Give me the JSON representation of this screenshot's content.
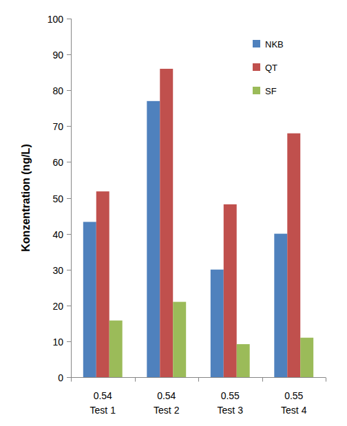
{
  "chart_data": {
    "type": "bar",
    "y_label": "Konzentration (ng/L)",
    "categories": [
      "0.54\nTest 1",
      "0.54\nTest 2",
      "0.55\nTest 3",
      "0.55\nTest 4"
    ],
    "series": [
      {
        "name": "NKB",
        "color": "#4f81bd",
        "values": [
          43.3,
          77,
          30,
          40
        ]
      },
      {
        "name": "QT",
        "color": "#c0504d",
        "values": [
          51.8,
          86,
          48.2,
          68
        ]
      },
      {
        "name": "SF",
        "color": "#9bbb59",
        "values": [
          15.8,
          21,
          9.2,
          11
        ]
      }
    ],
    "ylim": [
      0,
      100
    ],
    "yticks": [
      0,
      10,
      20,
      30,
      40,
      50,
      60,
      70,
      80,
      90,
      100
    ],
    "grid": false,
    "legend": "top-right"
  }
}
